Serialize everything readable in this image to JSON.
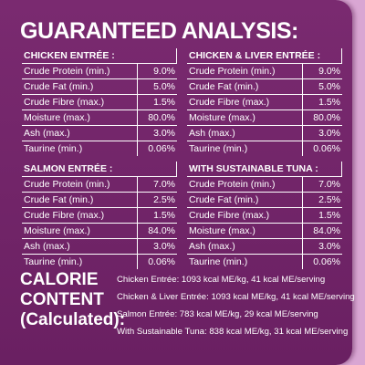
{
  "title": "GUARANTEED ANALYSIS:",
  "tables": [
    {
      "heading": "CHICKEN ENTRÉE :",
      "rows": [
        [
          "Crude Protein (min.)",
          "9.0%"
        ],
        [
          "Crude Fat (min.)",
          "5.0%"
        ],
        [
          "Crude Fibre (max.)",
          "1.5%"
        ],
        [
          "Moisture (max.)",
          "80.0%"
        ],
        [
          "Ash (max.)",
          "3.0%"
        ],
        [
          "Taurine (min.)",
          "0.06%"
        ]
      ]
    },
    {
      "heading": "CHICKEN & LIVER ENTRÉE :",
      "rows": [
        [
          "Crude Protein (min.)",
          "9.0%"
        ],
        [
          "Crude Fat (min.)",
          "5.0%"
        ],
        [
          "Crude Fibre (max.)",
          "1.5%"
        ],
        [
          "Moisture (max.)",
          "80.0%"
        ],
        [
          "Ash (max.)",
          "3.0%"
        ],
        [
          "Taurine (min.)",
          "0.06%"
        ]
      ]
    },
    {
      "heading": "SALMON ENTRÉE :",
      "rows": [
        [
          "Crude Protein (min.)",
          "7.0%"
        ],
        [
          "Crude Fat (min.)",
          "2.5%"
        ],
        [
          "Crude Fibre (max.)",
          "1.5%"
        ],
        [
          "Moisture (max.)",
          "84.0%"
        ],
        [
          "Ash (max.)",
          "3.0%"
        ],
        [
          "Taurine (min.)",
          "0.06%"
        ]
      ]
    },
    {
      "heading": "WITH SUSTAINABLE TUNA :",
      "rows": [
        [
          "Crude Protein (min.)",
          "7.0%"
        ],
        [
          "Crude Fat (min.)",
          "2.5%"
        ],
        [
          "Crude Fibre (max.)",
          "1.5%"
        ],
        [
          "Moisture (max.)",
          "84.0%"
        ],
        [
          "Ash (max.)",
          "3.0%"
        ],
        [
          "Taurine (min.)",
          "0.06%"
        ]
      ]
    }
  ],
  "calorie": {
    "heading": [
      "CALORIE",
      "CONTENT",
      "(Calculated):"
    ],
    "lines": [
      "Chicken Entrée: 1093 kcal ME/kg, 41 kcal ME/serving",
      "Chicken & Liver Entrée: 1093 kcal ME/kg, 41 kcal ME/serving",
      "Salmon Entrée: 783 kcal ME/kg, 29 kcal ME/serving",
      "With Sustainable Tuna: 838 kcal ME/kg, 31 kcal ME/serving"
    ]
  }
}
